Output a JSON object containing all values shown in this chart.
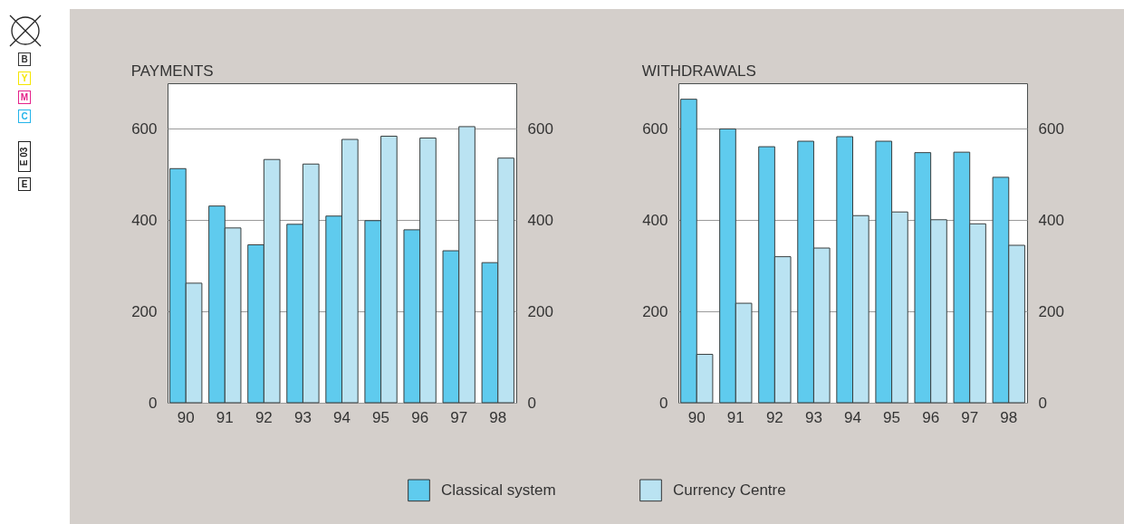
{
  "chart_data": [
    {
      "type": "bar",
      "title": "PAYMENTS",
      "categories": [
        "90",
        "91",
        "92",
        "93",
        "94",
        "95",
        "96",
        "97",
        "98"
      ],
      "series": [
        {
          "name": "Classical system",
          "color": "#5fcbee",
          "values": [
            513,
            431,
            346,
            391,
            409,
            399,
            379,
            333,
            307
          ]
        },
        {
          "name": "Currency Centre",
          "color": "#bae3f2",
          "values": [
            262,
            383,
            533,
            523,
            577,
            584,
            580,
            605,
            536
          ]
        }
      ],
      "ylim": [
        0,
        700
      ],
      "yticks": [
        0,
        200,
        400,
        600
      ],
      "y2lim": [
        0,
        700
      ],
      "y2ticks": [
        0,
        200,
        400,
        600
      ],
      "grid": "y",
      "legend": "bottom",
      "annotations": [
        "B",
        "Y",
        "M",
        "C",
        "E 03",
        "E"
      ]
    },
    {
      "type": "bar",
      "title": "WITHDRAWALS",
      "categories": [
        "90",
        "91",
        "92",
        "93",
        "94",
        "95",
        "96",
        "97",
        "98"
      ],
      "series": [
        {
          "name": "Classical system",
          "color": "#5fcbee",
          "values": [
            665,
            600,
            561,
            573,
            583,
            573,
            548,
            549,
            494
          ]
        },
        {
          "name": "Currency Centre",
          "color": "#bae3f2",
          "values": [
            106,
            218,
            320,
            339,
            410,
            418,
            401,
            392,
            345
          ]
        }
      ],
      "ylim": [
        0,
        700
      ],
      "yticks": [
        0,
        200,
        400,
        600
      ],
      "y2lim": [
        0,
        700
      ],
      "y2ticks": [
        0,
        200,
        400,
        600
      ],
      "grid": "y",
      "legend": "bottom"
    }
  ]
}
